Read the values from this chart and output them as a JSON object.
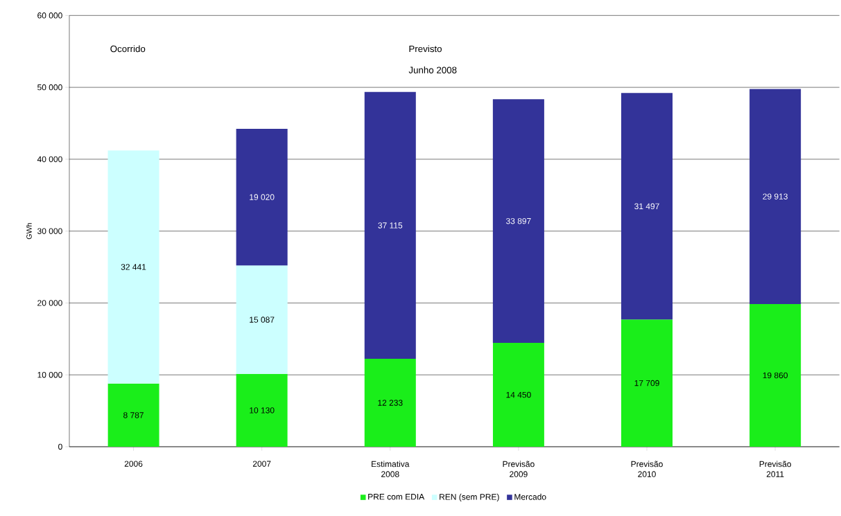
{
  "chart_data": {
    "type": "bar",
    "stacked": true,
    "ylabel": "GWh",
    "categories": [
      "2006",
      "2007",
      "Estimativa 2008",
      "Previsão 2009",
      "Previsão 2010",
      "Previsão 2011"
    ],
    "series": [
      {
        "name": "PRE com EDIA",
        "color": "#1aee1a",
        "values": [
          8787,
          10130,
          12233,
          14450,
          17709,
          19860
        ],
        "value_labels": [
          "8 787",
          "10 130",
          "12 233",
          "14 450",
          "17 709",
          "19 860"
        ]
      },
      {
        "name": "REN (sem PRE)",
        "color": "#ccffff",
        "values": [
          32441,
          15087,
          null,
          null,
          null,
          null
        ],
        "value_labels": [
          "32 441",
          "15 087",
          null,
          null,
          null,
          null
        ]
      },
      {
        "name": "Mercado",
        "color": "#333399",
        "values": [
          null,
          19020,
          37115,
          33897,
          31497,
          29913
        ],
        "value_labels": [
          null,
          "19 020",
          "37 115",
          "33 897",
          "31 497",
          "29 913"
        ]
      }
    ],
    "ylim": [
      0,
      60000
    ],
    "yticks": [
      {
        "value": 0,
        "label": "0"
      },
      {
        "value": 10000,
        "label": "10 000"
      },
      {
        "value": 20000,
        "label": "20 000"
      },
      {
        "value": 30000,
        "label": "30 000"
      },
      {
        "value": 40000,
        "label": "40 000"
      },
      {
        "value": 50000,
        "label": "50 000"
      },
      {
        "value": 60000,
        "label": "60 000"
      }
    ],
    "grid": "y",
    "legend": "bottom",
    "annotations": [
      "Ocorrido",
      "Previsto",
      "Junho 2008"
    ]
  }
}
